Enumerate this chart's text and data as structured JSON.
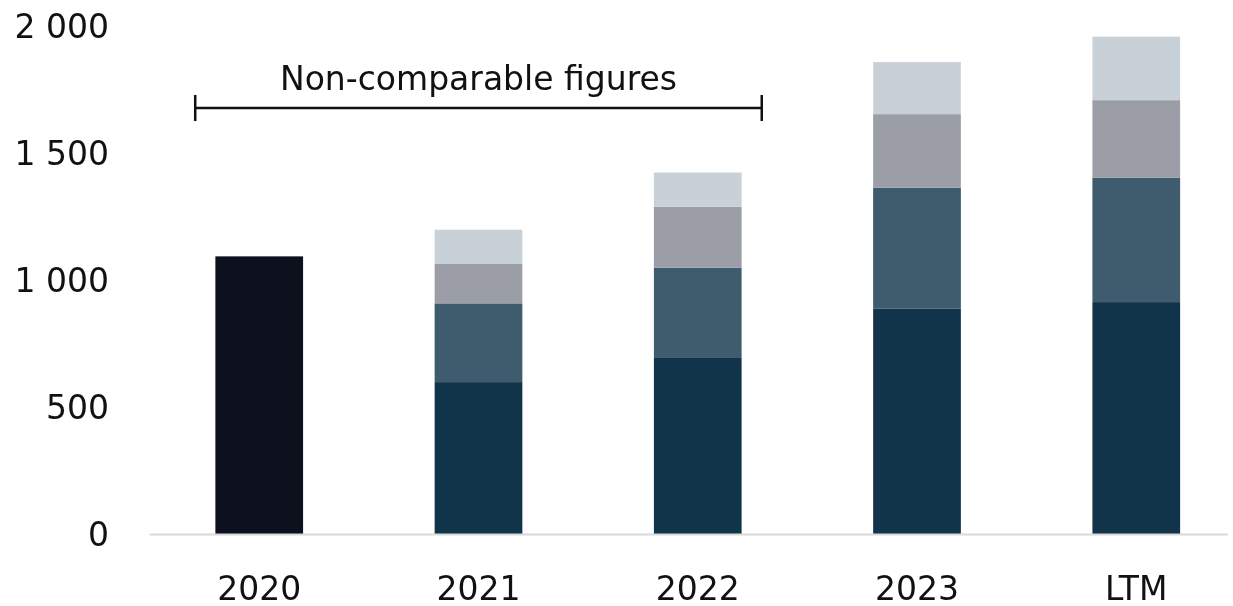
{
  "chart_data": {
    "type": "bar",
    "stacked": true,
    "categories": [
      "2020",
      "2021",
      "2022",
      "2023",
      "LTM"
    ],
    "series": [
      {
        "colors": [
          "#0d111d",
          "#12344a",
          "#12344a",
          "#12344a",
          "#12344a"
        ],
        "values": [
          1095,
          600,
          695,
          890,
          915
        ]
      },
      {
        "color": "#3e5c6e",
        "values": [
          null,
          310,
          355,
          475,
          490
        ]
      },
      {
        "color": "#9b9ea7",
        "values": [
          null,
          155,
          240,
          290,
          305
        ]
      },
      {
        "color": "#c9d1d8",
        "values": [
          null,
          135,
          135,
          205,
          250
        ]
      }
    ],
    "ylim": [
      0,
      2000
    ],
    "yticks": [
      0,
      500,
      {
        "value": 1000,
        "label": "1 000"
      },
      {
        "value": 1500,
        "label": "1 500"
      },
      {
        "value": 2000,
        "label": "2 000"
      }
    ],
    "annotations": [
      "Non-comparable figures"
    ]
  }
}
